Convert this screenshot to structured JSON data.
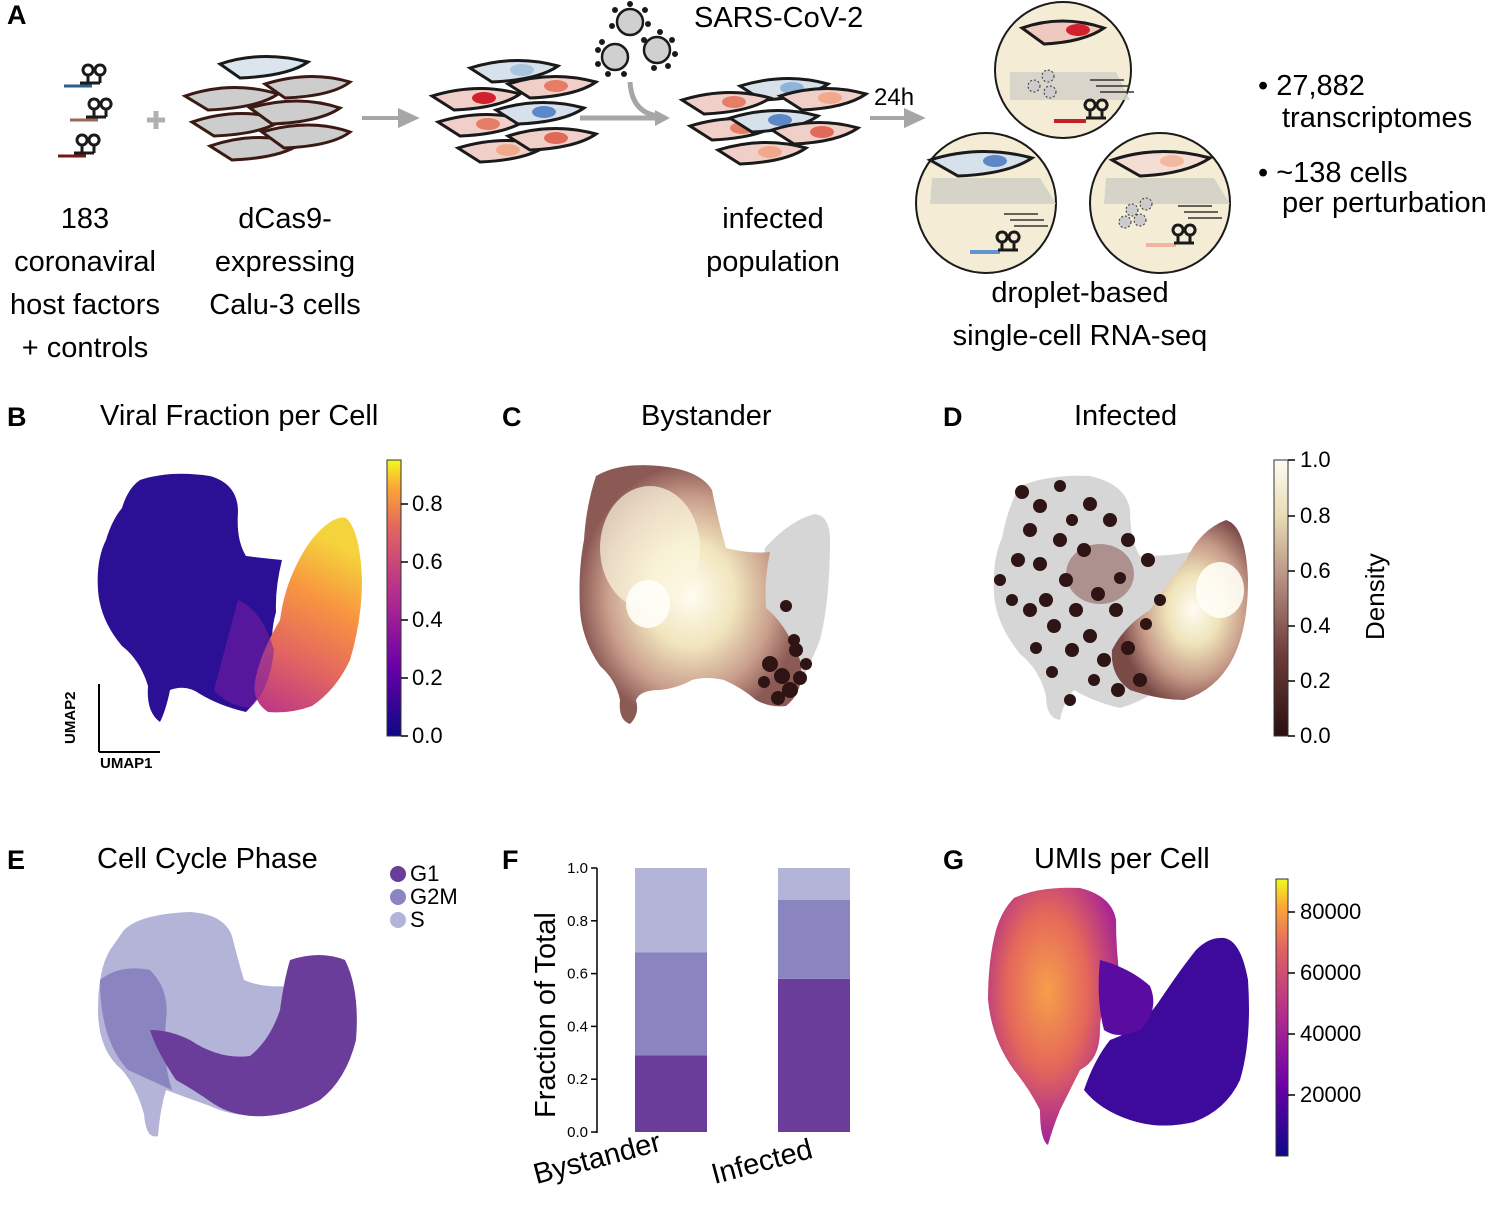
{
  "panels": {
    "A": {
      "label": "A",
      "step1": [
        "183",
        "coronaviral",
        "host factors",
        "+ controls"
      ],
      "step2": [
        "dCas9-",
        "expressing",
        "Calu-3 cells"
      ],
      "virus": "SARS-CoV-2",
      "step3": [
        "infected",
        "population"
      ],
      "time": "24h",
      "step4": [
        "droplet-based",
        "single-cell RNA-seq"
      ],
      "stats": [
        "• 27,882",
        "transcriptomes",
        "• ~138 cells",
        "per perturbation"
      ]
    },
    "B": {
      "label": "B",
      "title": "Viral Fraction per Cell",
      "axis_x": "UMAP1",
      "axis_y": "UMAP2",
      "colorbar_ticks": [
        "0.0",
        "0.2",
        "0.4",
        "0.6",
        "0.8"
      ]
    },
    "C": {
      "label": "C",
      "title": "Bystander"
    },
    "D": {
      "label": "D",
      "title": "Infected",
      "colorbar_label": "Density",
      "colorbar_ticks": [
        "0.0",
        "0.2",
        "0.4",
        "0.6",
        "0.8",
        "1.0"
      ]
    },
    "E": {
      "label": "E",
      "title": "Cell Cycle Phase",
      "legend": [
        "G1",
        "G2M",
        "S"
      ]
    },
    "F": {
      "label": "F"
    },
    "G": {
      "label": "G",
      "title": "UMIs per Cell",
      "colorbar_ticks": [
        "20000",
        "40000",
        "60000",
        "80000"
      ]
    }
  },
  "colors": {
    "g1": "#6a3d9a",
    "g2m": "#8a84c0",
    "s": "#b4b3d8",
    "umap_gray": "#d6d6d6"
  },
  "chart_data": {
    "type": "bar",
    "stacked": true,
    "categories": [
      "Bystander",
      "Infected"
    ],
    "series": [
      {
        "name": "G1",
        "values": [
          0.29,
          0.58
        ]
      },
      {
        "name": "G2M",
        "values": [
          0.39,
          0.3
        ]
      },
      {
        "name": "S",
        "values": [
          0.32,
          0.12
        ]
      }
    ],
    "ylabel": "Fraction of Total",
    "ylim": [
      0,
      1.0
    ],
    "yticks": [
      "0.0",
      "0.2",
      "0.4",
      "0.6",
      "0.8",
      "1.0"
    ]
  }
}
